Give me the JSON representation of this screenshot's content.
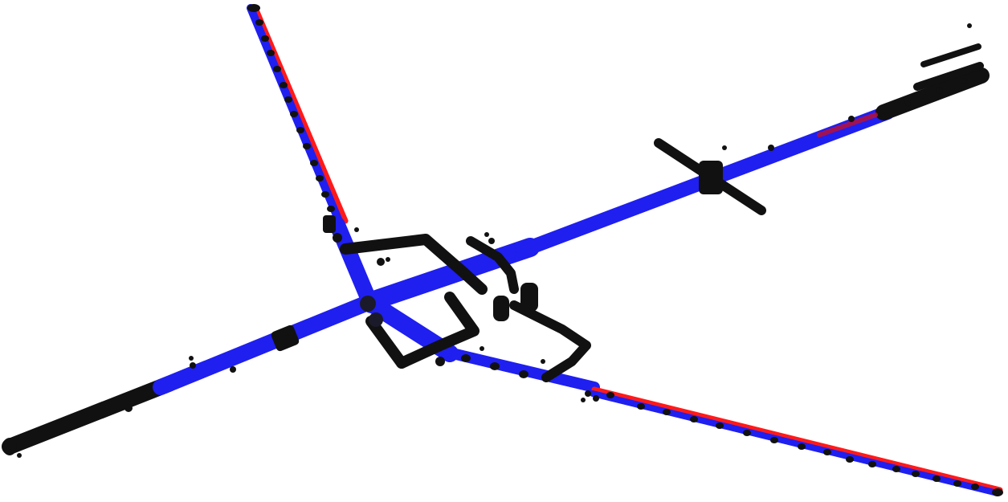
{
  "scene": {
    "background": "#ffffff",
    "colors": {
      "pipe_blue": "#1f1ff0",
      "pipe_blue_dark": "#0a0a8c",
      "pipe_red": "#ff1a1a",
      "pipe_black": "#111111",
      "junction": "#1a1a2a"
    }
  }
}
